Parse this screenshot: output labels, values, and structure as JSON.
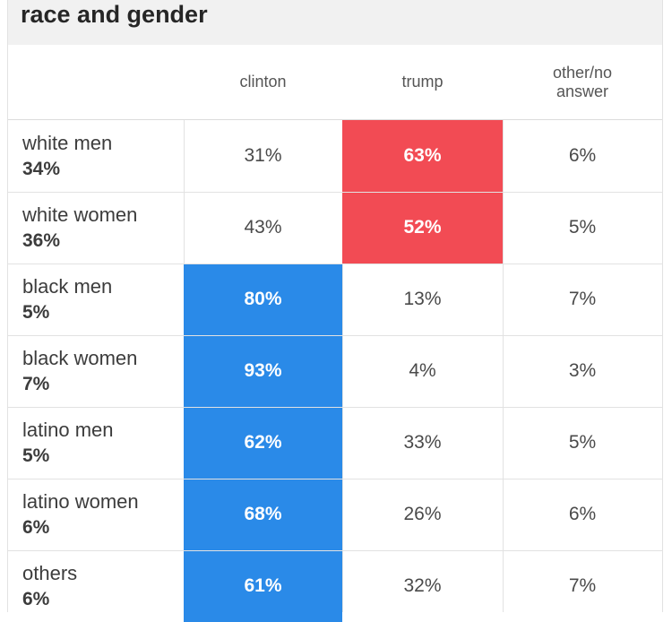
{
  "title": "race and gender",
  "colors": {
    "clinton_win": "#2a8ae8",
    "trump_win": "#f24b54"
  },
  "chart_data": {
    "type": "table",
    "title": "race and gender",
    "columns": [
      "clinton",
      "trump",
      "other/no answer"
    ],
    "column_lines": [
      [
        "clinton"
      ],
      [
        "trump"
      ],
      [
        "other/no",
        "answer"
      ]
    ],
    "rows": [
      {
        "group": "white men",
        "share": "34%",
        "clinton": "31%",
        "trump": "63%",
        "other": "6%",
        "winner": "trump"
      },
      {
        "group": "white women",
        "share": "36%",
        "clinton": "43%",
        "trump": "52%",
        "other": "5%",
        "winner": "trump"
      },
      {
        "group": "black men",
        "share": "5%",
        "clinton": "80%",
        "trump": "13%",
        "other": "7%",
        "winner": "clinton"
      },
      {
        "group": "black women",
        "share": "7%",
        "clinton": "93%",
        "trump": "4%",
        "other": "3%",
        "winner": "clinton"
      },
      {
        "group": "latino men",
        "share": "5%",
        "clinton": "62%",
        "trump": "33%",
        "other": "5%",
        "winner": "clinton"
      },
      {
        "group": "latino women",
        "share": "6%",
        "clinton": "68%",
        "trump": "26%",
        "other": "6%",
        "winner": "clinton"
      },
      {
        "group": "others",
        "share": "6%",
        "clinton": "61%",
        "trump": "32%",
        "other": "7%",
        "winner": "clinton"
      }
    ]
  }
}
